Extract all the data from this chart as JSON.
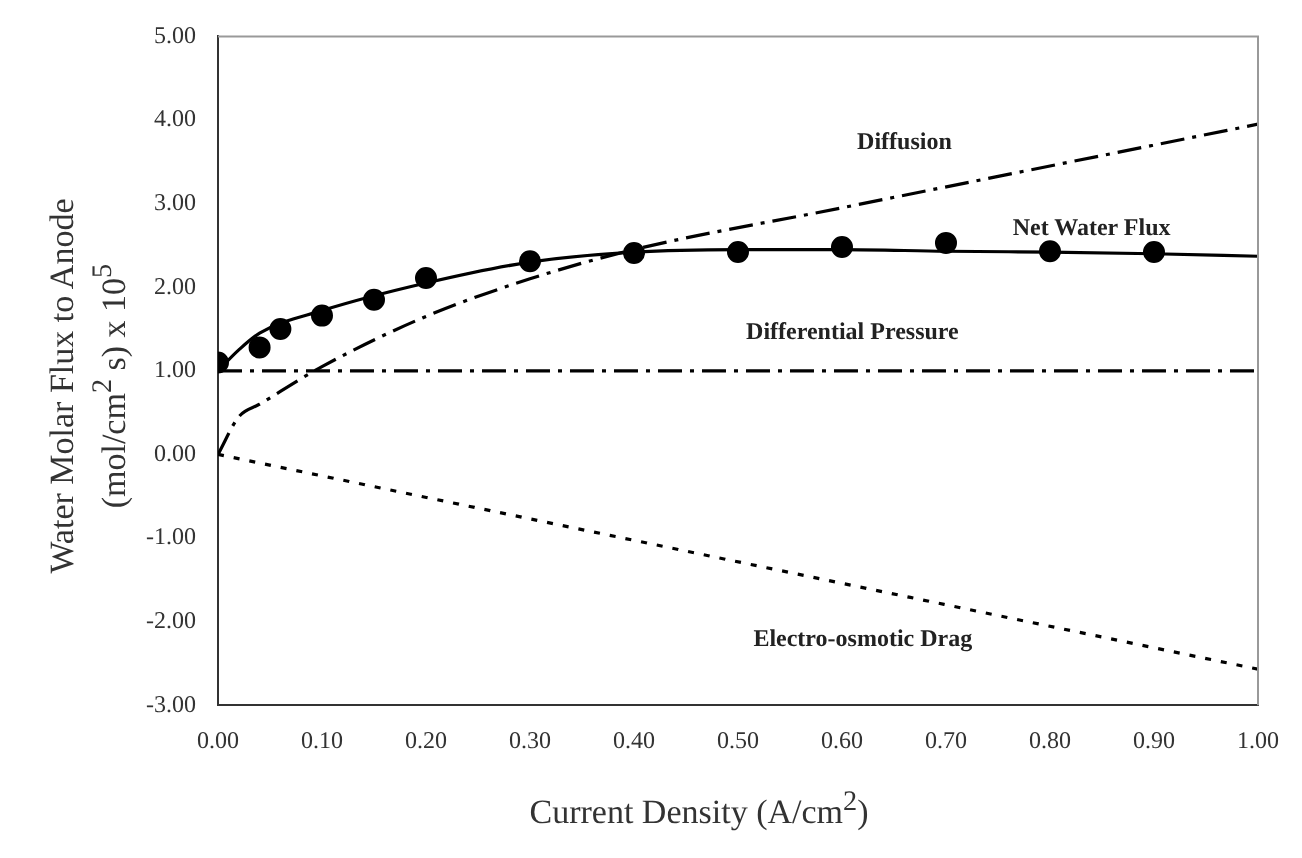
{
  "chart_data": {
    "type": "line",
    "xlabel": "Current Density (A/cm$^{2}$)",
    "ylabel": "Water Molar Flux to Anode\n(mol/cm$^{2}$ s) x 10$^{5}$",
    "xlim": [
      0,
      1
    ],
    "ylim": [
      -3,
      5
    ],
    "xticks": [
      {
        "value": 0,
        "label": "0.00"
      },
      {
        "value": 0.1,
        "label": "0.10"
      },
      {
        "value": 0.2,
        "label": "0.20"
      },
      {
        "value": 0.3,
        "label": "0.30"
      },
      {
        "value": 0.4,
        "label": "0.40"
      },
      {
        "value": 0.5,
        "label": "0.50"
      },
      {
        "value": 0.6,
        "label": "0.60"
      },
      {
        "value": 0.7,
        "label": "0.70"
      },
      {
        "value": 0.8,
        "label": "0.80"
      },
      {
        "value": 0.9,
        "label": "0.90"
      },
      {
        "value": 1,
        "label": "1.00"
      }
    ],
    "yticks": [
      {
        "value": -3,
        "label": "-3.00"
      },
      {
        "value": -2,
        "label": "-2.00"
      },
      {
        "value": -1,
        "label": "-1.00"
      },
      {
        "value": 0,
        "label": "0.00"
      },
      {
        "value": 1,
        "label": "1.00"
      },
      {
        "value": 2,
        "label": "2.00"
      },
      {
        "value": 3,
        "label": "3.00"
      },
      {
        "value": 4,
        "label": "4.00"
      },
      {
        "value": 5,
        "label": "5.00"
      }
    ],
    "grid": false,
    "legend": false,
    "series": [
      {
        "type": "line",
        "name": "Diffusion",
        "color": "#000000",
        "line_style": "dashed",
        "x": [
          0,
          0.02,
          0.04,
          0.1,
          0.2,
          0.3,
          0.4,
          0.6,
          0.8,
          1.0
        ],
        "values": [
          0,
          0.45,
          0.6,
          1.05,
          1.65,
          2.1,
          2.45,
          2.95,
          3.45,
          3.95
        ]
      },
      {
        "type": "line",
        "name": "Net Water Flux",
        "color": "#000000",
        "line_style": "solid",
        "x": [
          0,
          0.02,
          0.04,
          0.1,
          0.2,
          0.3,
          0.4,
          0.5,
          0.6,
          0.7,
          0.8,
          0.9,
          1.0
        ],
        "values": [
          1.0,
          1.25,
          1.45,
          1.72,
          2.05,
          2.3,
          2.42,
          2.45,
          2.45,
          2.43,
          2.42,
          2.4,
          2.37
        ]
      },
      {
        "type": "scatter",
        "color": "#000000",
        "marker": "circle",
        "x": [
          0,
          0.04,
          0.06,
          0.1,
          0.15,
          0.2,
          0.3,
          0.4,
          0.5,
          0.6,
          0.7,
          0.8,
          0.9
        ],
        "values": [
          1.1,
          1.28,
          1.5,
          1.66,
          1.85,
          2.11,
          2.31,
          2.41,
          2.42,
          2.48,
          2.53,
          2.43,
          2.42
        ]
      },
      {
        "type": "line",
        "name": "Differential Pressure",
        "color": "#000000",
        "line_style": "dashed",
        "x": [
          0,
          1
        ],
        "values": [
          1,
          1
        ]
      },
      {
        "type": "line",
        "name": "Electro-osmotic Drag",
        "color": "#000000",
        "line_style": "dotted",
        "x": [
          0,
          1
        ],
        "values": [
          0,
          -2.57
        ]
      }
    ]
  }
}
